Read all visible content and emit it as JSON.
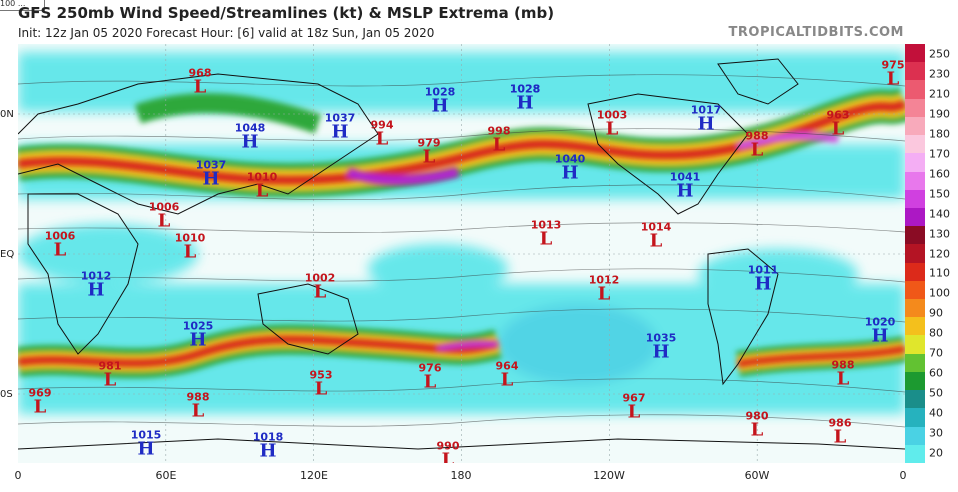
{
  "header": {
    "corner_tag": "100 ...",
    "title": "GFS 250mb Wind Speed/Streamlines (kt) & MSLP Extrema (mb)",
    "subtitle": "Init: 12z Jan 05 2020   Forecast Hour: [6]   valid at 18z Sun, Jan 05 2020",
    "credit": "TROPICALTIDBITS.COM"
  },
  "axes": {
    "lon_labels": [
      "0",
      "60E",
      "120E",
      "180",
      "120W",
      "60W",
      "0"
    ],
    "lat_labels": [
      "0N",
      "EQ",
      "0S"
    ]
  },
  "colorbar": {
    "unit": "kt",
    "labels": [
      "250",
      "230",
      "210",
      "190",
      "180",
      "170",
      "160",
      "150",
      "140",
      "130",
      "120",
      "110",
      "100",
      "90",
      "80",
      "70",
      "60",
      "50",
      "40",
      "30",
      "20"
    ],
    "colors": [
      "#c2103a",
      "#dc3050",
      "#ec5a70",
      "#f48496",
      "#f8aabb",
      "#fbc8de",
      "#f4aef4",
      "#e878ec",
      "#d040e0",
      "#ac18c4",
      "#8a0c24",
      "#b41424",
      "#dc2a1a",
      "#f05818",
      "#f48a1c",
      "#f4c01c",
      "#e0e62c",
      "#62c232",
      "#1c9a30",
      "#1a8e8a",
      "#26b2be",
      "#4ad2e4",
      "#60ecec"
    ]
  },
  "pressure_systems": [
    {
      "type": "L",
      "value": "968"
    },
    {
      "type": "L",
      "value": "975"
    },
    {
      "type": "H",
      "value": "1028"
    },
    {
      "type": "H",
      "value": "1048"
    },
    {
      "type": "H",
      "value": "1037"
    },
    {
      "type": "L",
      "value": "994"
    },
    {
      "type": "H",
      "value": "1028"
    },
    {
      "type": "H",
      "value": "1028"
    },
    {
      "type": "L",
      "value": "1003"
    },
    {
      "type": "H",
      "value": "1017"
    },
    {
      "type": "L",
      "value": "963"
    },
    {
      "type": "L",
      "value": "979"
    },
    {
      "type": "L",
      "value": "998"
    },
    {
      "type": "H",
      "value": "1040"
    },
    {
      "type": "L",
      "value": "988"
    },
    {
      "type": "L",
      "value": "1006"
    },
    {
      "type": "H",
      "value": "1037"
    },
    {
      "type": "L",
      "value": "1010"
    },
    {
      "type": "H",
      "value": "1041"
    },
    {
      "type": "L",
      "value": "1013"
    },
    {
      "type": "L",
      "value": "1014"
    },
    {
      "type": "L",
      "value": "1006"
    },
    {
      "type": "L",
      "value": "1010"
    },
    {
      "type": "H",
      "value": "1012"
    },
    {
      "type": "L",
      "value": "1002"
    },
    {
      "type": "L",
      "value": "1012"
    },
    {
      "type": "H",
      "value": "1011"
    },
    {
      "type": "H",
      "value": "1025"
    },
    {
      "type": "H",
      "value": "1035"
    },
    {
      "type": "H",
      "value": "1020"
    },
    {
      "type": "L",
      "value": "981"
    },
    {
      "type": "L",
      "value": "976"
    },
    {
      "type": "L",
      "value": "964"
    },
    {
      "type": "L",
      "value": "988"
    },
    {
      "type": "L",
      "value": "969"
    },
    {
      "type": "L",
      "value": "988"
    },
    {
      "type": "L",
      "value": "953"
    },
    {
      "type": "L",
      "value": "967"
    },
    {
      "type": "L",
      "value": "980"
    },
    {
      "type": "L",
      "value": "986"
    },
    {
      "type": "H",
      "value": "1015"
    },
    {
      "type": "H",
      "value": "1018"
    },
    {
      "type": "L",
      "value": "990"
    }
  ]
}
